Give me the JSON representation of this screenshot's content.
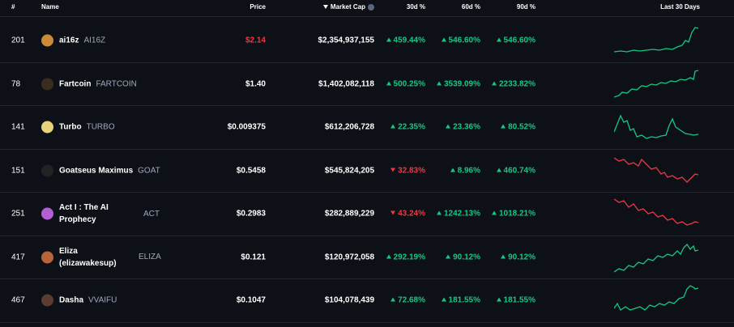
{
  "header": {
    "columns": [
      "#",
      "Name",
      "Price",
      "Market Cap",
      "30d %",
      "60d %",
      "90d %",
      "Last 30 Days"
    ]
  },
  "rows": [
    {
      "rank": "201",
      "name": "ai16z",
      "symbol": "AI16Z",
      "price": "$2.14",
      "market_cap": "$2,354,937,155",
      "change_30d": "459.44%",
      "change_60d": "546.60%",
      "change_90d": "546.60%"
    },
    {
      "rank": "78",
      "name": "Fartcoin",
      "symbol": "FARTCOIN",
      "price": "$1.40",
      "market_cap": "$1,402,082,118",
      "change_30d": "500.25%",
      "change_60d": "3539.09%",
      "change_90d": "2233.82%"
    },
    {
      "rank": "141",
      "name": "Turbo",
      "symbol": "TURBO",
      "price": "$0.009375",
      "market_cap": "$612,206,728",
      "change_30d": "22.35%",
      "change_60d": "23.36%",
      "change_90d": "80.52%"
    },
    {
      "rank": "151",
      "name": "Goatseus Maximus",
      "symbol": "GOAT",
      "price": "$0.5458",
      "market_cap": "$545,824,205",
      "change_30d": "32.83%",
      "change_60d": "8.96%",
      "change_90d": "460.74%"
    },
    {
      "rank": "251",
      "name": "Act I : The AI Prophecy",
      "symbol": "ACT",
      "price": "$0.2983",
      "market_cap": "$282,889,229",
      "change_30d": "43.24%",
      "change_60d": "1242.13%",
      "change_90d": "1018.21%"
    },
    {
      "rank": "417",
      "name": "Eliza (elizawakesup)",
      "symbol": "ELIZA",
      "price": "$0.121",
      "market_cap": "$120,972,058",
      "change_30d": "292.19%",
      "change_60d": "90.12%",
      "change_90d": "90.12%"
    },
    {
      "rank": "467",
      "name": "Dasha",
      "symbol": "VVAIFU",
      "price": "$0.1047",
      "market_cap": "$104,078,439",
      "change_30d": "72.68%",
      "change_60d": "181.55%",
      "change_90d": "181.55%"
    }
  ]
}
